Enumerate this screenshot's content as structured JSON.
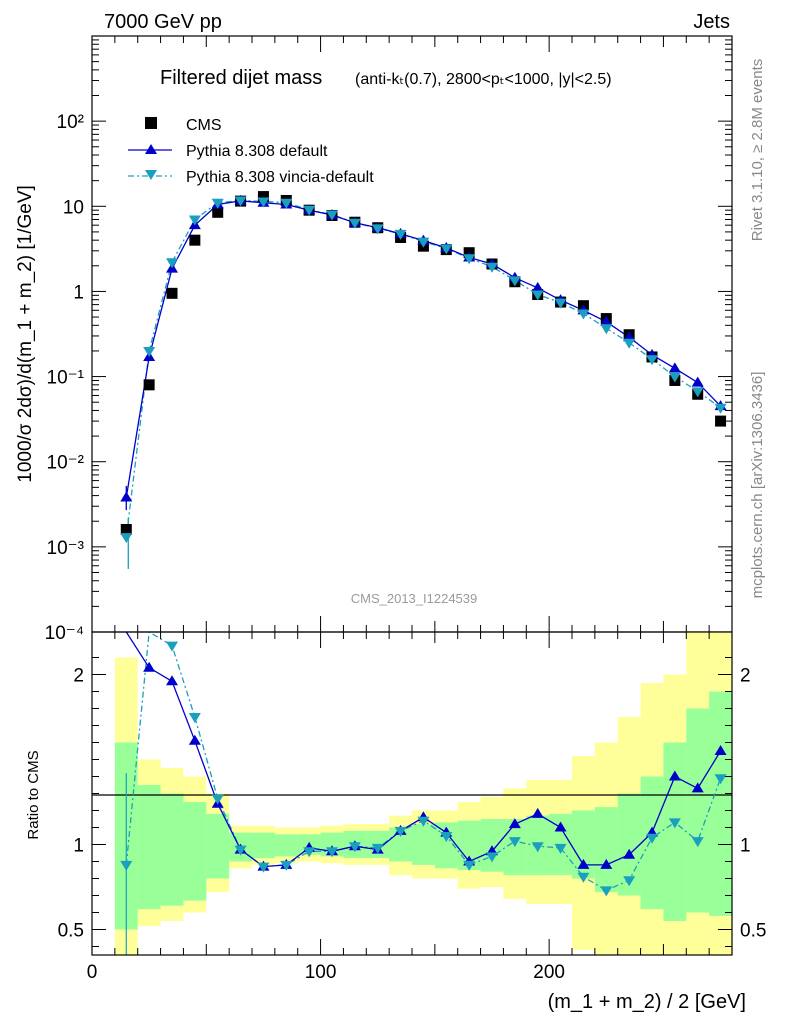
{
  "header": {
    "left": "7000 GeV pp",
    "right": "Jets"
  },
  "title": {
    "main": "Filtered dijet mass",
    "cuts": "(anti-kₜ(0.7), 2800<pₜ<1000, |y|<2.5)"
  },
  "side_labels": {
    "rivet": "Rivet 3.1.10, ≥ 2.8M events",
    "mcplots": "mcplots.cern.ch [arXiv:1306.3436]"
  },
  "watermark": "CMS_2013_I1224539",
  "legend": {
    "cms": "CMS",
    "pythia_default": "Pythia 8.308 default",
    "pythia_vincia": "Pythia 8.308 vincia-default"
  },
  "colors": {
    "cms": "#000000",
    "pythia_default": "#0000cc",
    "pythia_vincia": "#1a9fbf",
    "band_inner": "#99ff99",
    "band_outer": "#ffff99"
  },
  "chart_data": [
    {
      "type": "scatter",
      "panel": "main",
      "ylabel": "1000/σ 2dσ)/d(m_1 + m_2) [1/GeV]",
      "yscale": "log",
      "xlim": [
        0,
        280
      ],
      "ylim": [
        0.0001,
        1000
      ],
      "y_tick_labels": [
        "10⁻⁴",
        "10⁻³",
        "10⁻²",
        "10⁻¹",
        "1",
        "10",
        "10²"
      ],
      "x": [
        15,
        25,
        35,
        45,
        55,
        65,
        75,
        85,
        95,
        105,
        115,
        125,
        135,
        145,
        155,
        165,
        175,
        185,
        195,
        205,
        215,
        225,
        235,
        245,
        255,
        265,
        275
      ],
      "series": [
        {
          "name": "CMS",
          "values": [
            0.0016,
            0.08,
            0.95,
            4.0,
            8.5,
            11.5,
            13.0,
            11.7,
            9.0,
            7.8,
            6.5,
            5.6,
            4.3,
            3.4,
            3.1,
            2.85,
            2.1,
            1.3,
            0.92,
            0.75,
            0.68,
            0.48,
            0.31,
            0.17,
            0.09,
            0.062,
            0.03
          ]
        },
        {
          "name": "Pythia 8.308 default",
          "values": [
            0.0038,
            0.17,
            1.85,
            6.0,
            10.5,
            11.6,
            11.0,
            10.5,
            9.0,
            7.9,
            6.4,
            5.6,
            4.75,
            3.95,
            3.25,
            2.5,
            2.1,
            1.45,
            1.1,
            0.79,
            0.6,
            0.44,
            0.29,
            0.18,
            0.125,
            0.085,
            0.045
          ]
        },
        {
          "name": "Pythia 8.308 vincia-default",
          "values": [
            0.0013,
            0.2,
            2.2,
            7.0,
            11.0,
            11.7,
            11.4,
            11.0,
            9.1,
            8.0,
            6.4,
            5.5,
            4.75,
            3.85,
            3.2,
            2.45,
            1.95,
            1.35,
            0.92,
            0.74,
            0.55,
            0.37,
            0.25,
            0.16,
            0.1,
            0.067,
            0.043
          ]
        }
      ]
    },
    {
      "type": "line",
      "panel": "ratio",
      "xlabel": "(m_1 + m_2) / 2 [GeV]",
      "ylabel": "Ratio to CMS",
      "xlim": [
        0,
        280
      ],
      "ylim": [
        0.35,
        2.25
      ],
      "x_tick_labels": [
        "0",
        "100",
        "200"
      ],
      "y_tick_labels": [
        "0.5",
        "1",
        "2"
      ],
      "x": [
        15,
        25,
        35,
        45,
        55,
        65,
        75,
        85,
        95,
        105,
        115,
        125,
        135,
        145,
        155,
        165,
        175,
        185,
        195,
        205,
        215,
        225,
        235,
        245,
        255,
        265,
        275
      ],
      "bands": {
        "edges": [
          10,
          20,
          30,
          40,
          50,
          60,
          70,
          80,
          90,
          100,
          110,
          120,
          130,
          140,
          150,
          160,
          170,
          180,
          190,
          200,
          210,
          220,
          230,
          240,
          250,
          260,
          270,
          280
        ],
        "inner_lo": [
          0.5,
          0.62,
          0.64,
          0.67,
          0.8,
          0.9,
          0.92,
          0.93,
          0.94,
          0.93,
          0.92,
          0.92,
          0.9,
          0.88,
          0.86,
          0.85,
          0.84,
          0.82,
          0.82,
          0.82,
          0.8,
          0.72,
          0.7,
          0.62,
          0.55,
          0.6,
          0.58
        ],
        "inner_hi": [
          1.6,
          1.35,
          1.3,
          1.25,
          1.18,
          1.07,
          1.07,
          1.06,
          1.06,
          1.07,
          1.08,
          1.08,
          1.1,
          1.12,
          1.13,
          1.14,
          1.15,
          1.15,
          1.17,
          1.18,
          1.2,
          1.22,
          1.3,
          1.4,
          1.6,
          1.8,
          1.9
        ],
        "outer_lo": [
          0.35,
          0.52,
          0.55,
          0.6,
          0.72,
          0.86,
          0.88,
          0.89,
          0.9,
          0.89,
          0.88,
          0.88,
          0.82,
          0.8,
          0.8,
          0.74,
          0.75,
          0.68,
          0.65,
          0.65,
          0.38,
          0.35,
          0.35,
          0.35,
          0.35,
          0.35,
          0.35
        ],
        "outer_hi": [
          2.1,
          1.5,
          1.45,
          1.4,
          1.3,
          1.11,
          1.11,
          1.1,
          1.1,
          1.11,
          1.12,
          1.12,
          1.17,
          1.2,
          1.2,
          1.25,
          1.28,
          1.33,
          1.38,
          1.38,
          1.52,
          1.6,
          1.75,
          1.95,
          2.0,
          2.4,
          2.5
        ]
      },
      "series": [
        {
          "name": "Pythia 8.308 default",
          "values": [
            2.4,
            2.04,
            1.96,
            1.61,
            1.24,
            0.97,
            0.87,
            0.88,
            0.98,
            0.96,
            0.99,
            0.97,
            1.08,
            1.16,
            1.07,
            0.9,
            0.96,
            1.12,
            1.18,
            1.1,
            0.88,
            0.88,
            0.94,
            1.07,
            1.4,
            1.33,
            1.55
          ]
        },
        {
          "name": "Pythia 8.308 vincia-default",
          "values": [
            0.88,
            2.42,
            2.17,
            1.75,
            1.27,
            0.97,
            0.87,
            0.88,
            0.96,
            0.96,
            0.99,
            0.98,
            1.08,
            1.14,
            1.05,
            0.88,
            0.93,
            1.02,
            0.99,
            0.98,
            0.81,
            0.73,
            0.79,
            1.04,
            1.13,
            1.02,
            1.39
          ]
        }
      ]
    }
  ]
}
